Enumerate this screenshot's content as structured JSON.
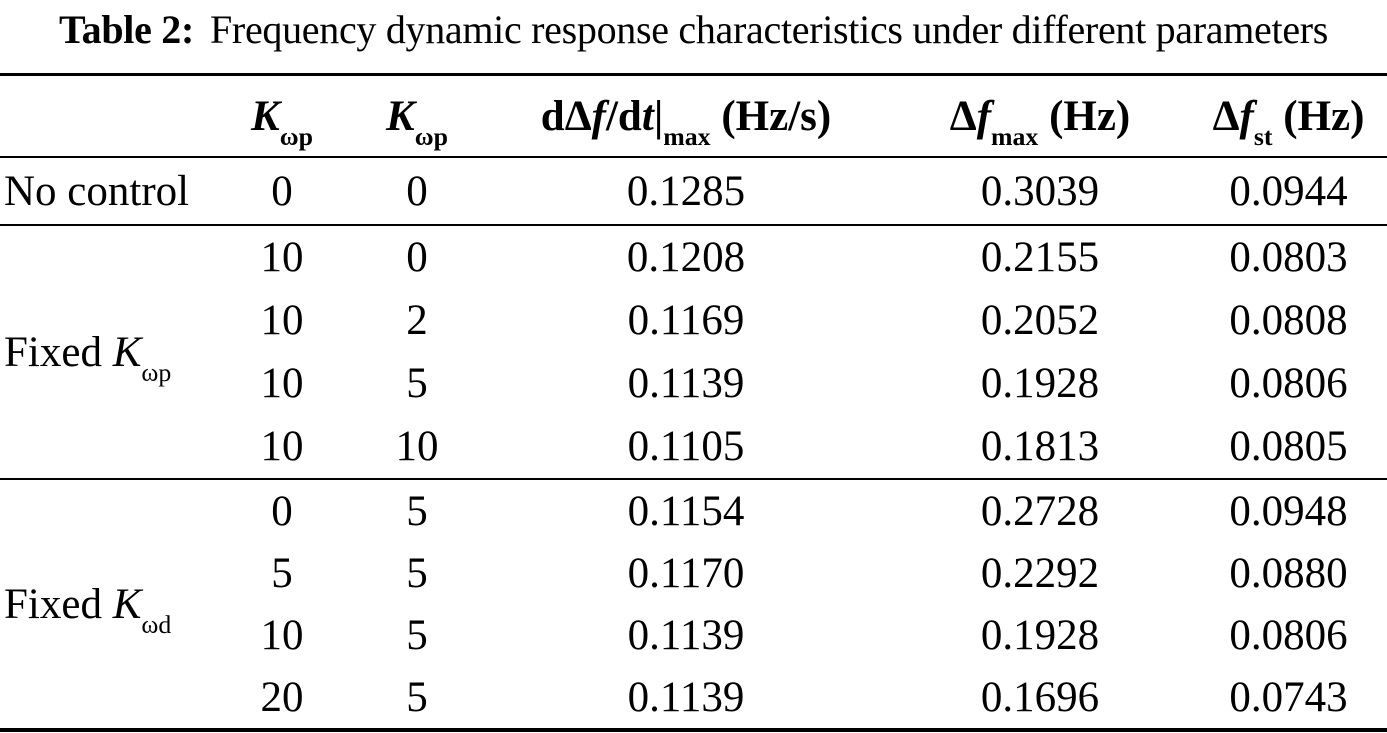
{
  "title": {
    "label": "Table 2:",
    "text": "Frequency dynamic response characteristics under different parameters"
  },
  "table": {
    "header": {
      "col_kp": {
        "base": "K",
        "sub": "ωp"
      },
      "col_kd": {
        "base": "K",
        "sub": "ωp"
      },
      "col_rocof": {
        "pre": "dΔ",
        "f": "f",
        "mid": "/d",
        "t": "t",
        "bar": "|",
        "sub": "max",
        "unit": " (Hz/s)"
      },
      "col_fmax": {
        "pre": "Δ",
        "f": "f",
        "sub": "max",
        "unit": " (Hz)"
      },
      "col_fst": {
        "pre": "Δ",
        "f": "f",
        "sub": "st",
        "unit": " (Hz)"
      }
    },
    "groups": [
      {
        "label": {
          "text": "No control"
        },
        "rows": [
          [
            "0",
            "0",
            "0.1285",
            "0.3039",
            "0.0944"
          ]
        ]
      },
      {
        "label": {
          "text": "Fixed ",
          "math_base": "K",
          "math_sub": "ωp"
        },
        "rows": [
          [
            "10",
            "0",
            "0.1208",
            "0.2155",
            "0.0803"
          ],
          [
            "10",
            "2",
            "0.1169",
            "0.2052",
            "0.0808"
          ],
          [
            "10",
            "5",
            "0.1139",
            "0.1928",
            "0.0806"
          ],
          [
            "10",
            "10",
            "0.1105",
            "0.1813",
            "0.0805"
          ]
        ]
      },
      {
        "label": {
          "text": "Fixed ",
          "math_base": "K",
          "math_sub": "ωd"
        },
        "rows": [
          [
            "0",
            "5",
            "0.1154",
            "0.2728",
            "0.0948"
          ],
          [
            "5",
            "5",
            "0.1170",
            "0.2292",
            "0.0880"
          ],
          [
            "10",
            "5",
            "0.1139",
            "0.1928",
            "0.0806"
          ],
          [
            "20",
            "5",
            "0.1139",
            "0.1696",
            "0.0743"
          ]
        ]
      }
    ]
  }
}
